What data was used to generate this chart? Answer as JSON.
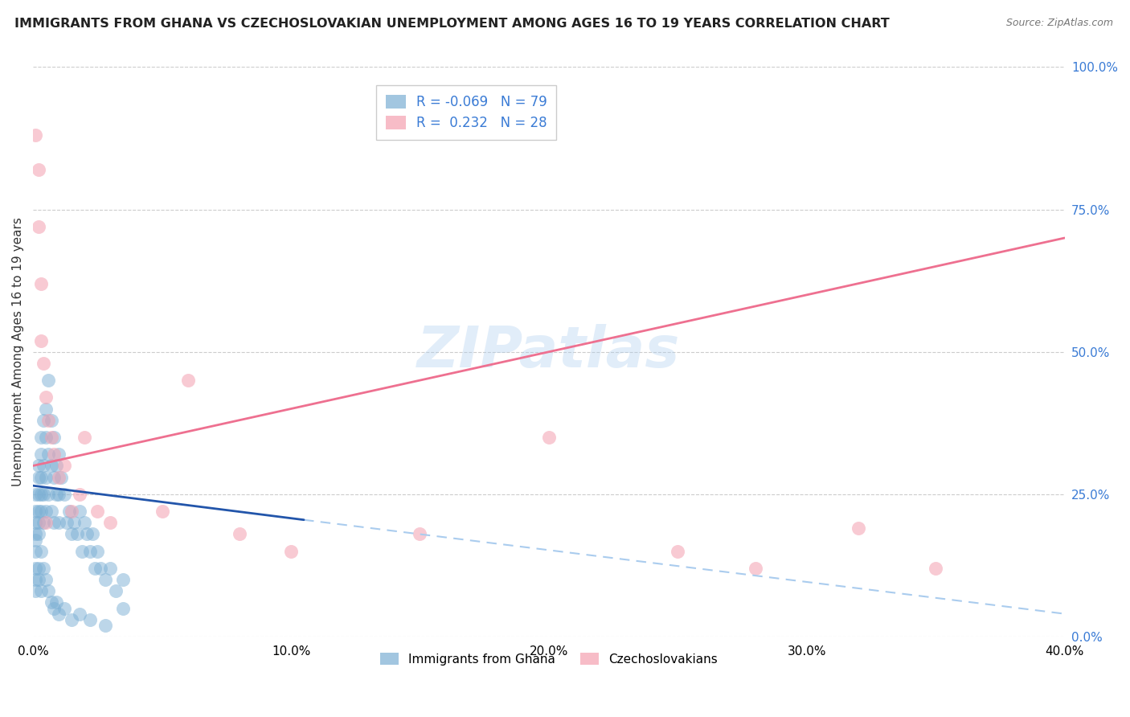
{
  "title": "IMMIGRANTS FROM GHANA VS CZECHOSLOVAKIAN UNEMPLOYMENT AMONG AGES 16 TO 19 YEARS CORRELATION CHART",
  "source": "Source: ZipAtlas.com",
  "ylabel": "Unemployment Among Ages 16 to 19 years",
  "legend_label1": "Immigrants from Ghana",
  "legend_label2": "Czechoslovakians",
  "R1": -0.069,
  "N1": 79,
  "R2": 0.232,
  "N2": 28,
  "xlim": [
    0.0,
    0.4
  ],
  "ylim": [
    0.0,
    1.0
  ],
  "x_ticks": [
    0.0,
    0.1,
    0.2,
    0.3,
    0.4
  ],
  "x_tick_labels": [
    "0.0%",
    "10.0%",
    "20.0%",
    "30.0%",
    "40.0%"
  ],
  "y_ticks_right": [
    0.0,
    0.25,
    0.5,
    0.75,
    1.0
  ],
  "y_tick_labels_right": [
    "0.0%",
    "25.0%",
    "50.0%",
    "75.0%",
    "100.0%"
  ],
  "color_ghana": "#7BAFD4",
  "color_czech": "#F4A0B0",
  "color_trend_ghana": "#2255AA",
  "color_trend_czech": "#EE7090",
  "color_trend_dashed": "#AACCEE",
  "watermark": "ZIPatlas",
  "ghana_x": [
    0.001,
    0.001,
    0.001,
    0.001,
    0.001,
    0.001,
    0.001,
    0.002,
    0.002,
    0.002,
    0.002,
    0.002,
    0.002,
    0.003,
    0.003,
    0.003,
    0.003,
    0.003,
    0.004,
    0.004,
    0.004,
    0.004,
    0.005,
    0.005,
    0.005,
    0.005,
    0.006,
    0.006,
    0.006,
    0.007,
    0.007,
    0.007,
    0.008,
    0.008,
    0.008,
    0.009,
    0.009,
    0.01,
    0.01,
    0.01,
    0.011,
    0.012,
    0.013,
    0.014,
    0.015,
    0.016,
    0.017,
    0.018,
    0.019,
    0.02,
    0.021,
    0.022,
    0.023,
    0.024,
    0.025,
    0.026,
    0.028,
    0.03,
    0.032,
    0.035,
    0.001,
    0.001,
    0.002,
    0.002,
    0.003,
    0.003,
    0.004,
    0.005,
    0.006,
    0.007,
    0.008,
    0.009,
    0.01,
    0.012,
    0.015,
    0.018,
    0.022,
    0.028,
    0.035
  ],
  "ghana_y": [
    0.2,
    0.22,
    0.18,
    0.15,
    0.17,
    0.25,
    0.12,
    0.28,
    0.3,
    0.22,
    0.25,
    0.18,
    0.2,
    0.35,
    0.32,
    0.28,
    0.22,
    0.25,
    0.38,
    0.3,
    0.25,
    0.2,
    0.4,
    0.35,
    0.28,
    0.22,
    0.45,
    0.32,
    0.25,
    0.38,
    0.3,
    0.22,
    0.28,
    0.35,
    0.2,
    0.3,
    0.25,
    0.32,
    0.25,
    0.2,
    0.28,
    0.25,
    0.2,
    0.22,
    0.18,
    0.2,
    0.18,
    0.22,
    0.15,
    0.2,
    0.18,
    0.15,
    0.18,
    0.12,
    0.15,
    0.12,
    0.1,
    0.12,
    0.08,
    0.1,
    0.1,
    0.08,
    0.12,
    0.1,
    0.15,
    0.08,
    0.12,
    0.1,
    0.08,
    0.06,
    0.05,
    0.06,
    0.04,
    0.05,
    0.03,
    0.04,
    0.03,
    0.02,
    0.05
  ],
  "czech_x": [
    0.001,
    0.002,
    0.002,
    0.003,
    0.003,
    0.004,
    0.005,
    0.006,
    0.007,
    0.008,
    0.01,
    0.012,
    0.015,
    0.018,
    0.02,
    0.025,
    0.03,
    0.05,
    0.06,
    0.08,
    0.1,
    0.15,
    0.2,
    0.25,
    0.28,
    0.32,
    0.35,
    0.005
  ],
  "czech_y": [
    0.88,
    0.82,
    0.72,
    0.62,
    0.52,
    0.48,
    0.42,
    0.38,
    0.35,
    0.32,
    0.28,
    0.3,
    0.22,
    0.25,
    0.35,
    0.22,
    0.2,
    0.22,
    0.45,
    0.18,
    0.15,
    0.18,
    0.35,
    0.15,
    0.12,
    0.19,
    0.12,
    0.2
  ],
  "trend_ghana_x0": 0.0,
  "trend_ghana_x1": 0.105,
  "trend_ghana_y0": 0.265,
  "trend_ghana_y1": 0.205,
  "trend_dashed_x0": 0.105,
  "trend_dashed_x1": 0.4,
  "trend_dashed_y0": 0.205,
  "trend_dashed_y1": 0.04,
  "trend_czech_x0": 0.0,
  "trend_czech_x1": 0.4,
  "trend_czech_y0": 0.3,
  "trend_czech_y1": 0.7
}
